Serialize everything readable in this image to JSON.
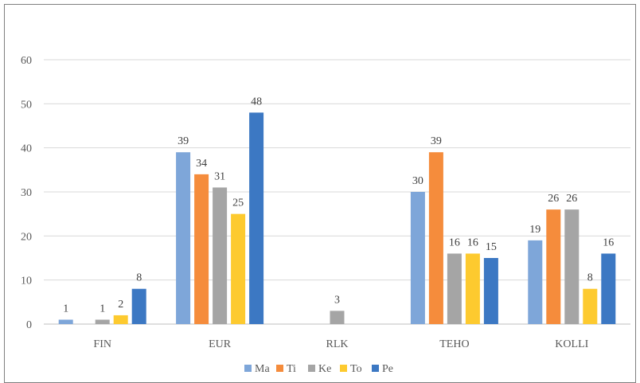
{
  "chart_data": {
    "type": "bar",
    "title": "",
    "xlabel": "",
    "ylabel": "",
    "ylim": [
      0,
      60
    ],
    "yticks": [
      0,
      10,
      20,
      30,
      40,
      50,
      60
    ],
    "grid": true,
    "legend_position": "bottom",
    "categories": [
      "FIN",
      "EUR",
      "RLK",
      "TEHO",
      "KOLLI"
    ],
    "series": [
      {
        "name": "Ma",
        "color": "#7ea6d9",
        "values": [
          1,
          39,
          null,
          30,
          19
        ]
      },
      {
        "name": "Ti",
        "color": "#f58c3c",
        "values": [
          null,
          34,
          null,
          39,
          26
        ]
      },
      {
        "name": "Ke",
        "color": "#a5a5a5",
        "values": [
          1,
          31,
          3,
          16,
          26
        ]
      },
      {
        "name": "To",
        "color": "#fdca2f",
        "values": [
          2,
          25,
          null,
          16,
          8
        ]
      },
      {
        "name": "Pe",
        "color": "#3c78c3",
        "values": [
          8,
          48,
          null,
          15,
          16
        ]
      }
    ]
  }
}
